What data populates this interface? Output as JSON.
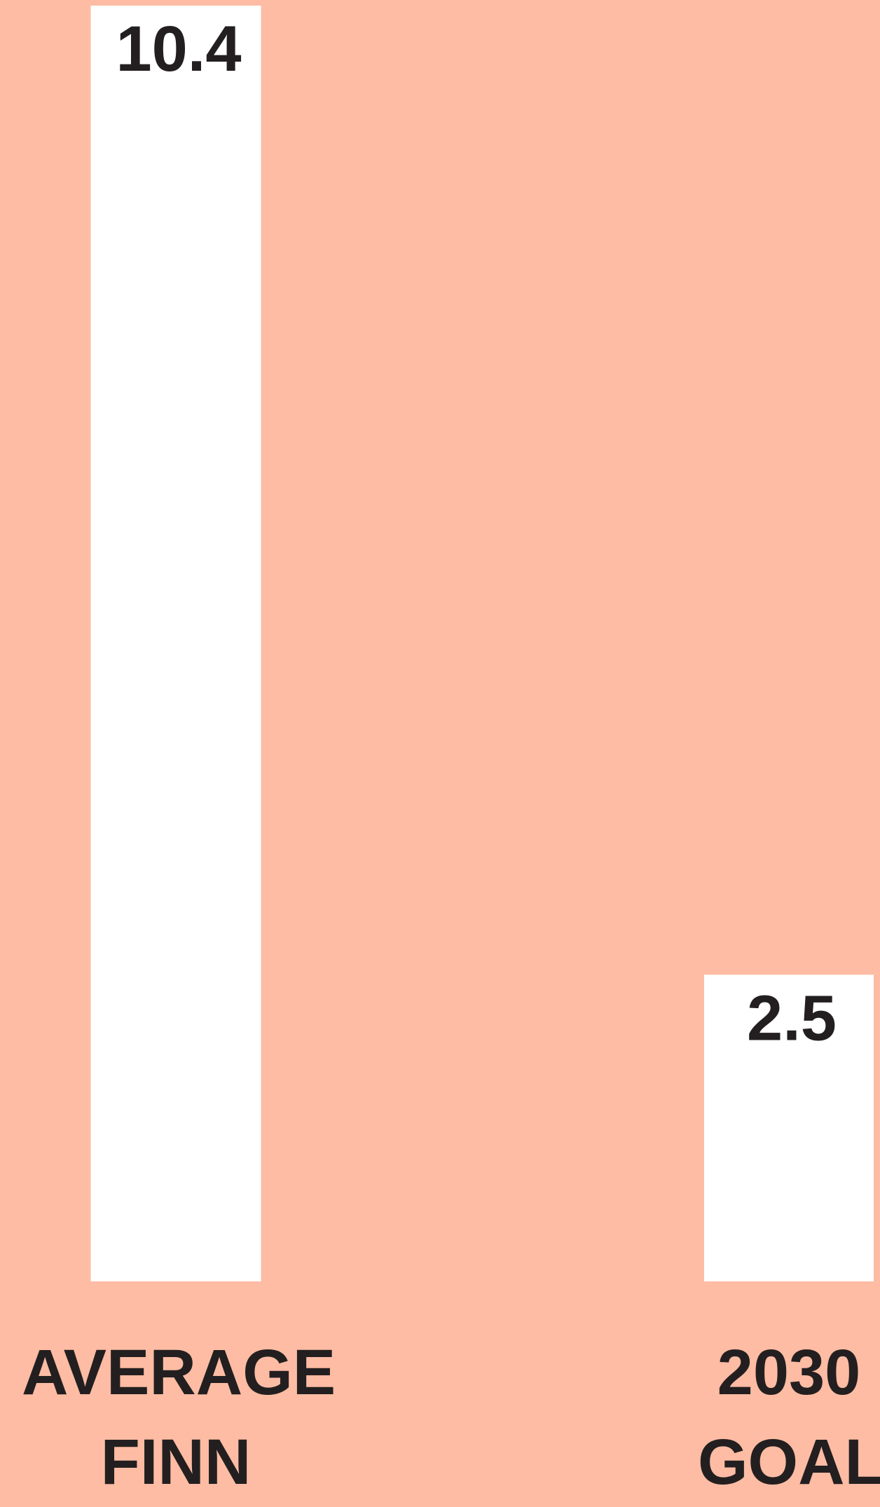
{
  "chart_data": {
    "type": "bar",
    "categories": [
      "AVERAGE FINN",
      "2030 GOAL"
    ],
    "values": [
      10.4,
      2.5
    ],
    "color": "#ffffff"
  }
}
